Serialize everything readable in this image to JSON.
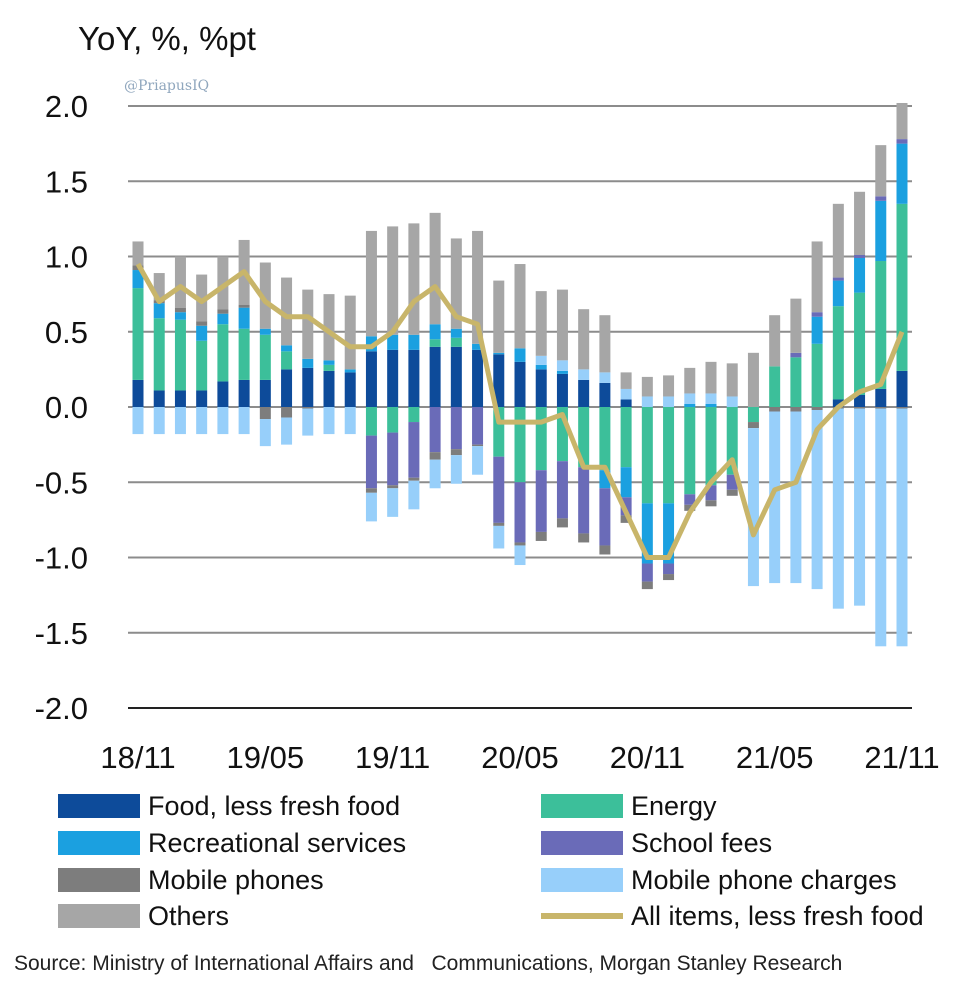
{
  "watermark": "@PriapusIQ",
  "source": "Source: Ministry of International Affairs and   Communications, Morgan Stanley Research",
  "chart_data": {
    "type": "bar",
    "stacked": true,
    "title": "",
    "ylabel": "YoY, %, %pt",
    "xlabel": "",
    "ylim": [
      -2.0,
      2.0
    ],
    "yticks": [
      2.0,
      1.5,
      1.0,
      0.5,
      0.0,
      -0.5,
      -1.0,
      -1.5,
      -2.0
    ],
    "ytick_labels": [
      "2.0",
      "1.5",
      "1.0",
      "0.5",
      "0.0",
      "-0.5",
      "-1.0",
      "-1.5",
      "-2.0"
    ],
    "grid": true,
    "legend_position": "bottom",
    "categories": [
      "18/11",
      "18/12",
      "19/01",
      "19/02",
      "19/03",
      "19/04",
      "19/05",
      "19/06",
      "19/07",
      "19/08",
      "19/09",
      "19/10",
      "19/11",
      "19/12",
      "20/01",
      "20/02",
      "20/03",
      "20/04",
      "20/05",
      "20/06",
      "20/07",
      "20/08",
      "20/09",
      "20/10",
      "20/11",
      "20/12",
      "21/01",
      "21/02",
      "21/03",
      "21/04",
      "21/05",
      "21/06",
      "21/07",
      "21/08",
      "21/09",
      "21/10",
      "21/11"
    ],
    "xtick_labels": [
      {
        "index": 0,
        "label": "18/11"
      },
      {
        "index": 6,
        "label": "19/05"
      },
      {
        "index": 12,
        "label": "19/11"
      },
      {
        "index": 18,
        "label": "20/05"
      },
      {
        "index": 24,
        "label": "20/11"
      },
      {
        "index": 30,
        "label": "21/05"
      },
      {
        "index": 36,
        "label": "21/11"
      }
    ],
    "series": [
      {
        "name": "Food, less fresh food",
        "color": "#0d4b9a",
        "values": [
          0.18,
          0.11,
          0.11,
          0.11,
          0.17,
          0.18,
          0.18,
          0.25,
          0.26,
          0.24,
          0.23,
          0.37,
          0.38,
          0.38,
          0.4,
          0.4,
          0.38,
          0.35,
          0.3,
          0.25,
          0.22,
          0.18,
          0.16,
          0.05,
          0.0,
          0.0,
          0.0,
          0.0,
          0.0,
          0.0,
          0.0,
          0.0,
          0.0,
          0.05,
          0.08,
          0.12,
          0.24
        ]
      },
      {
        "name": "Energy",
        "color": "#3cbf9a",
        "values": [
          0.61,
          0.48,
          0.47,
          0.33,
          0.38,
          0.34,
          0.3,
          0.12,
          0.0,
          0.04,
          0.0,
          -0.19,
          -0.17,
          -0.1,
          0.05,
          0.06,
          0.0,
          -0.33,
          -0.5,
          -0.42,
          -0.36,
          -0.4,
          -0.42,
          -0.4,
          -0.64,
          -0.64,
          -0.58,
          -0.52,
          -0.45,
          -0.1,
          0.27,
          0.33,
          0.42,
          0.62,
          0.68,
          0.85,
          1.11
        ]
      },
      {
        "name": "Recreational services",
        "color": "#1ba0e0",
        "values": [
          0.12,
          0.1,
          0.05,
          0.1,
          0.07,
          0.14,
          0.04,
          0.04,
          0.06,
          0.03,
          0.02,
          0.1,
          0.1,
          0.1,
          0.1,
          0.06,
          0.04,
          0.01,
          0.09,
          0.03,
          0.02,
          0.0,
          -0.12,
          -0.2,
          -0.4,
          -0.4,
          0.02,
          0.02,
          0.0,
          0.0,
          0.0,
          0.0,
          0.18,
          0.17,
          0.23,
          0.4,
          0.4
        ]
      },
      {
        "name": "School fees",
        "color": "#6a6bb8",
        "values": [
          0,
          0,
          0,
          0,
          0,
          0,
          0,
          0,
          0,
          0,
          0,
          -0.35,
          -0.35,
          -0.37,
          -0.3,
          -0.28,
          -0.25,
          -0.44,
          -0.4,
          -0.41,
          -0.38,
          -0.44,
          -0.38,
          -0.12,
          -0.12,
          -0.07,
          -0.07,
          -0.1,
          -0.1,
          0,
          0,
          0.03,
          0.03,
          0.02,
          0.02,
          0.03,
          0.03
        ]
      },
      {
        "name": "Mobile phones",
        "color": "#7d7d7d",
        "values": [
          0.03,
          0.02,
          0.03,
          0.03,
          0.03,
          0.02,
          -0.08,
          -0.07,
          -0.01,
          0,
          0,
          -0.03,
          -0.02,
          -0.02,
          -0.05,
          -0.04,
          -0.01,
          -0.02,
          -0.02,
          -0.06,
          -0.06,
          -0.06,
          -0.06,
          -0.05,
          -0.05,
          -0.04,
          -0.04,
          -0.04,
          -0.04,
          -0.04,
          -0.03,
          -0.03,
          -0.02,
          -0.01,
          -0.01,
          -0.01,
          -0.01
        ]
      },
      {
        "name": "Mobile phone charges",
        "color": "#97cffa",
        "values": [
          -0.18,
          -0.18,
          -0.18,
          -0.18,
          -0.18,
          -0.18,
          -0.18,
          -0.18,
          -0.18,
          -0.18,
          -0.18,
          -0.19,
          -0.19,
          -0.19,
          -0.19,
          -0.19,
          -0.19,
          -0.15,
          -0.13,
          0.06,
          0.07,
          0.07,
          0.07,
          0.07,
          0.07,
          0.07,
          0.07,
          0.07,
          0.07,
          -1.05,
          -1.14,
          -1.14,
          -1.19,
          -1.33,
          -1.31,
          -1.58,
          -1.58
        ]
      },
      {
        "name": "Others",
        "color": "#a6a6a6",
        "values": [
          0.16,
          0.18,
          0.34,
          0.31,
          0.35,
          0.43,
          0.44,
          0.45,
          0.46,
          0.44,
          0.49,
          0.7,
          0.72,
          0.74,
          0.74,
          0.6,
          0.75,
          0.48,
          0.56,
          0.43,
          0.47,
          0.4,
          0.38,
          0.11,
          0.13,
          0.14,
          0.17,
          0.21,
          0.22,
          0.36,
          0.34,
          0.36,
          0.47,
          0.49,
          0.42,
          0.34,
          0.24
        ]
      }
    ],
    "line": {
      "name": "All items, less fresh food",
      "color": "#c8b56a",
      "values": [
        0.95,
        0.7,
        0.8,
        0.7,
        0.8,
        0.9,
        0.7,
        0.6,
        0.6,
        0.5,
        0.4,
        0.4,
        0.5,
        0.7,
        0.8,
        0.6,
        0.55,
        -0.1,
        -0.1,
        -0.1,
        -0.05,
        -0.4,
        -0.4,
        -0.7,
        -1.0,
        -1.0,
        -0.7,
        -0.5,
        -0.35,
        -0.85,
        -0.55,
        -0.5,
        -0.15,
        0.0,
        0.1,
        0.15,
        0.5
      ]
    }
  },
  "legend": [
    {
      "label": "Food, less fresh food",
      "color": "#0d4b9a",
      "kind": "box"
    },
    {
      "label": "Energy",
      "color": "#3cbf9a",
      "kind": "box"
    },
    {
      "label": "Recreational services",
      "color": "#1ba0e0",
      "kind": "box"
    },
    {
      "label": "School fees",
      "color": "#6a6bb8",
      "kind": "box"
    },
    {
      "label": "Mobile phones",
      "color": "#7d7d7d",
      "kind": "box"
    },
    {
      "label": "Mobile phone charges",
      "color": "#97cffa",
      "kind": "box"
    },
    {
      "label": "Others",
      "color": "#a6a6a6",
      "kind": "box"
    },
    {
      "label": "All items, less fresh food",
      "color": "#c8b56a",
      "kind": "line"
    }
  ]
}
